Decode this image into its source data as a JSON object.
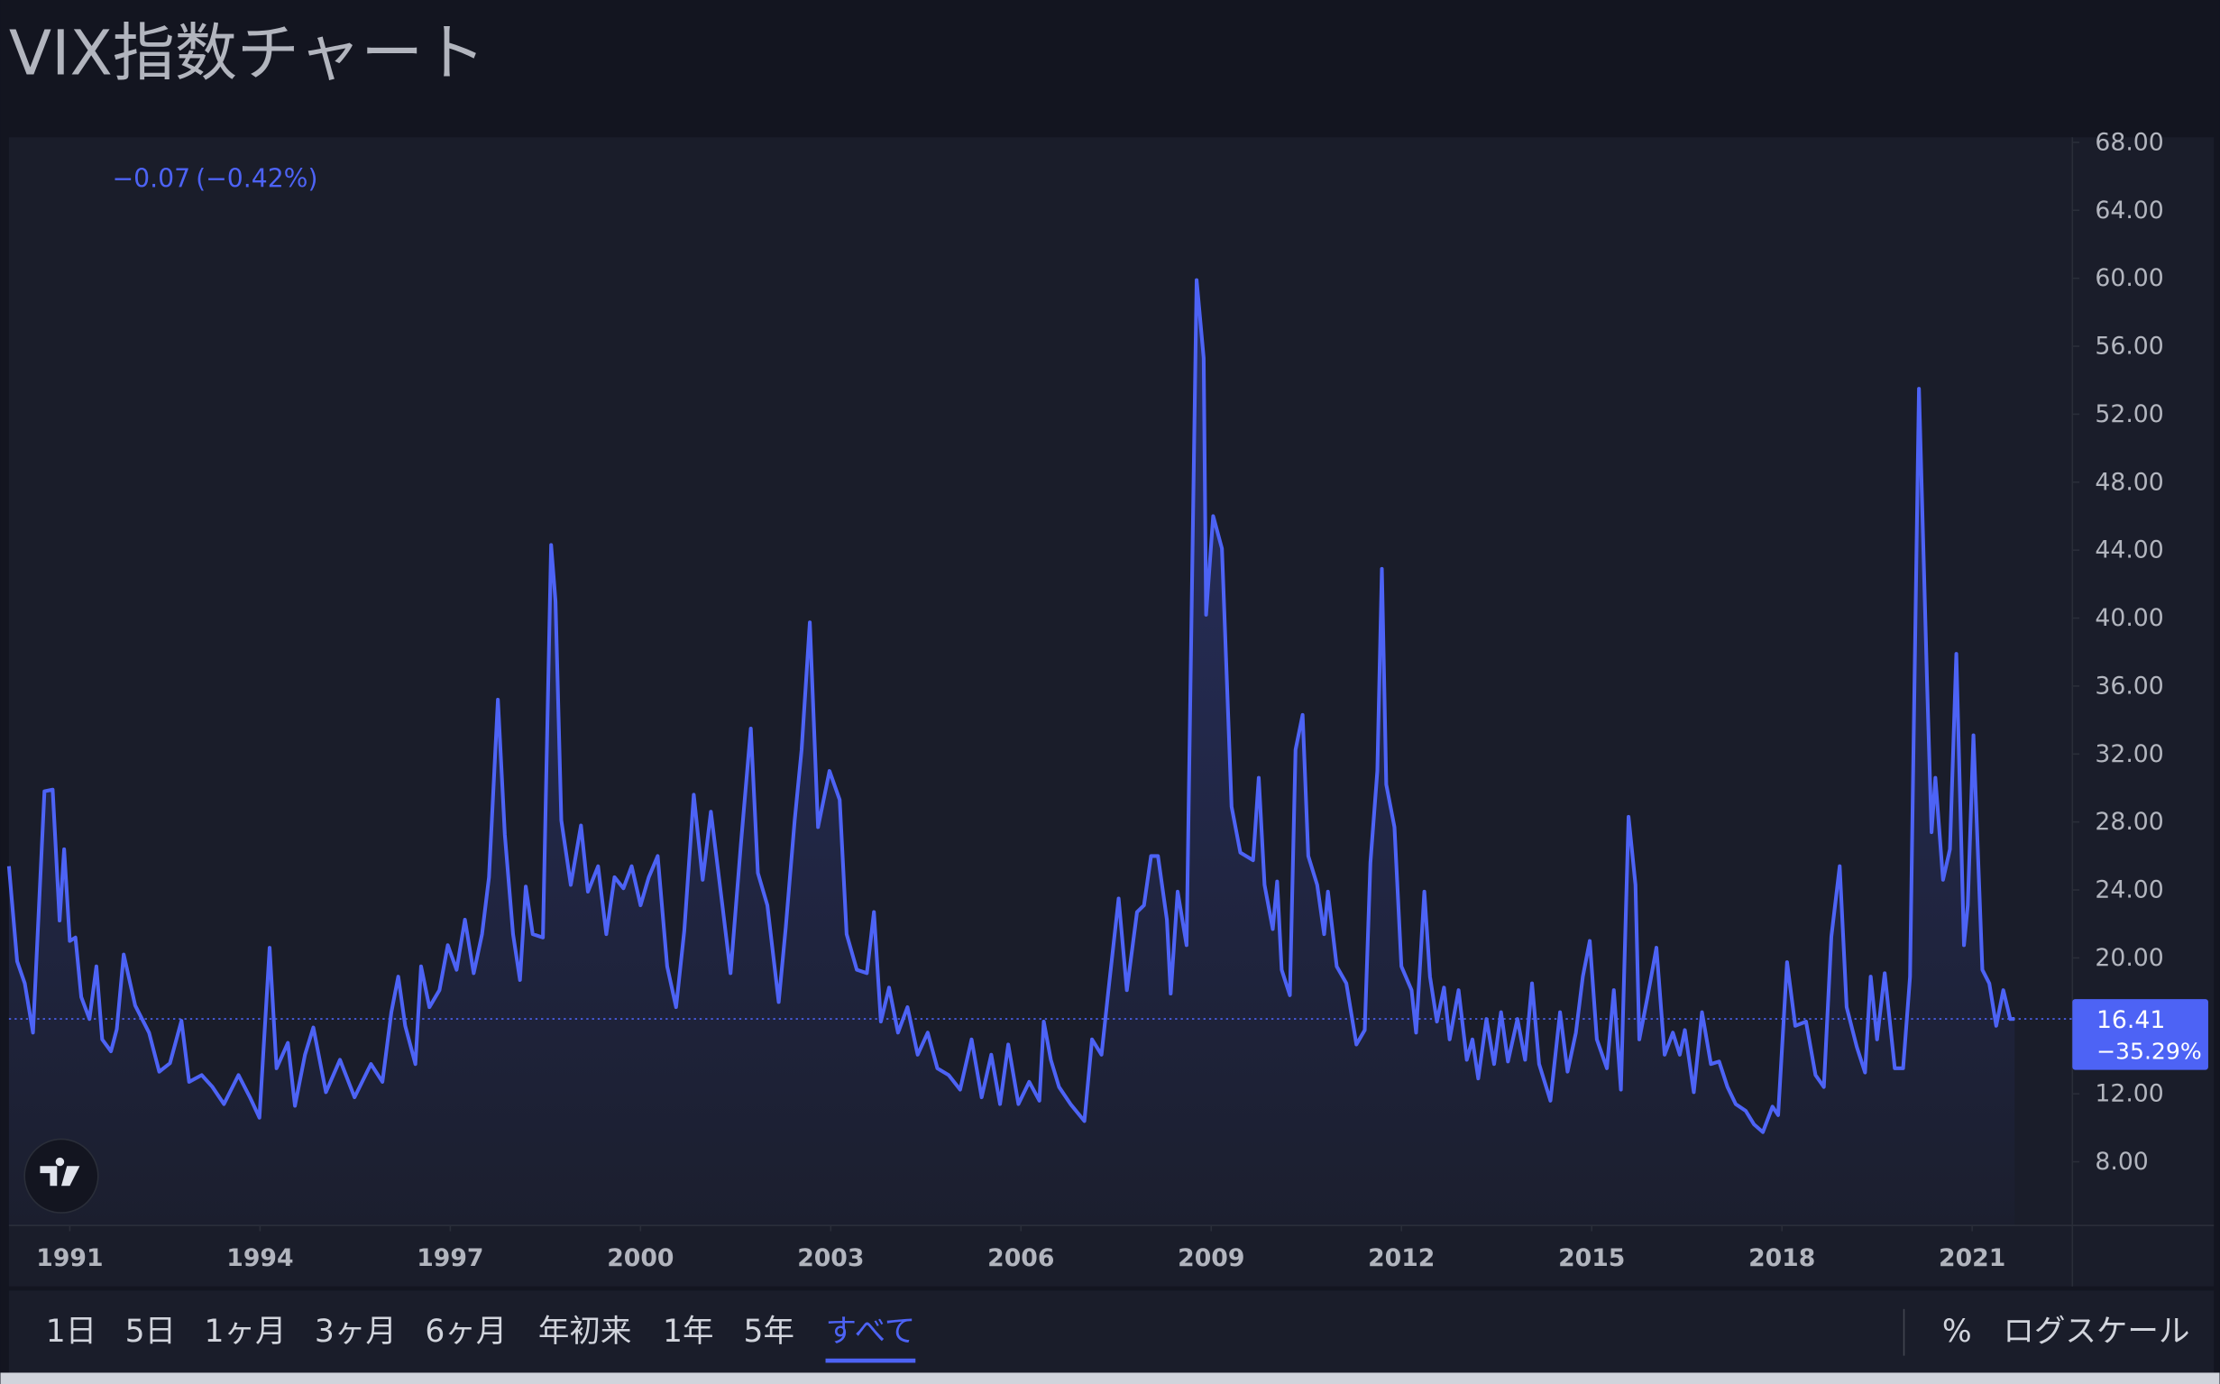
{
  "page": {
    "title": "VIX指数チャート",
    "range_buttons": [
      "1日",
      "5日",
      "1ヶ月",
      "3ヶ月",
      "6ヶ月",
      "年初来",
      "1年",
      "5年",
      "すべて"
    ],
    "active_range": 8,
    "percent_button": "%",
    "log_scale_button": "ログスケール"
  },
  "chart_data": {
    "type": "line",
    "header": {
      "change": "−0.07",
      "change_pct": "(−0.42%)"
    },
    "price_tag_change": "−35.29%",
    "log_scale": false,
    "xlim": [
      1990.04,
      2022.58
    ],
    "xticks": [
      1991,
      1994,
      1997,
      2000,
      2003,
      2006,
      2009,
      2012,
      2015,
      2018,
      2021
    ],
    "ylim": [
      4.25,
      68.3
    ],
    "yticks": [
      {
        "value": 8,
        "label": "8.00"
      },
      {
        "value": 12,
        "label": "12.00"
      },
      {
        "value": 16,
        "label": "16.00"
      },
      {
        "value": 20,
        "label": "20.00"
      },
      {
        "value": 24,
        "label": "24.00"
      },
      {
        "value": 28,
        "label": "28.00"
      },
      {
        "value": 32,
        "label": "32.00"
      },
      {
        "value": 36,
        "label": "36.00"
      },
      {
        "value": 40,
        "label": "40.00"
      },
      {
        "value": 44,
        "label": "44.00"
      },
      {
        "value": 48,
        "label": "48.00"
      },
      {
        "value": 52,
        "label": "52.00"
      },
      {
        "value": 56,
        "label": "56.00"
      },
      {
        "value": 60,
        "label": "60.00"
      },
      {
        "value": 64,
        "label": "64.00"
      },
      {
        "value": 68,
        "label": "68.00"
      }
    ],
    "hidden_yticks": [
      16
    ],
    "x": [
      1990.04,
      1990.17,
      1990.29,
      1990.42,
      1990.6,
      1990.73,
      1990.84,
      1990.91,
      1991.0,
      1991.09,
      1991.18,
      1991.31,
      1991.42,
      1991.51,
      1991.65,
      1991.74,
      1991.85,
      1992.03,
      1992.25,
      1992.41,
      1992.58,
      1992.76,
      1992.88,
      1993.08,
      1993.25,
      1993.43,
      1993.66,
      1993.84,
      1993.99,
      1994.15,
      1994.26,
      1994.44,
      1994.55,
      1994.71,
      1994.84,
      1995.04,
      1995.26,
      1995.49,
      1995.75,
      1995.93,
      1996.07,
      1996.18,
      1996.29,
      1996.45,
      1996.54,
      1996.67,
      1996.83,
      1996.96,
      1997.1,
      1997.23,
      1997.37,
      1997.5,
      1997.61,
      1997.75,
      1997.86,
      1997.99,
      1998.1,
      1998.19,
      1998.3,
      1998.46,
      1998.59,
      1998.66,
      1998.75,
      1998.9,
      1999.06,
      1999.17,
      1999.33,
      1999.46,
      1999.59,
      1999.73,
      1999.86,
      2000.0,
      2000.13,
      2000.27,
      2000.42,
      2000.56,
      2000.69,
      2000.84,
      2000.98,
      2001.11,
      2001.29,
      2001.42,
      2001.58,
      2001.74,
      2001.85,
      2002.0,
      2002.18,
      2002.29,
      2002.43,
      2002.54,
      2002.67,
      2002.8,
      2002.98,
      2003.14,
      2003.25,
      2003.41,
      2003.57,
      2003.68,
      2003.79,
      2003.92,
      2004.06,
      2004.21,
      2004.37,
      2004.53,
      2004.68,
      2004.86,
      2005.04,
      2005.22,
      2005.38,
      2005.53,
      2005.67,
      2005.8,
      2005.96,
      2006.13,
      2006.29,
      2006.36,
      2006.47,
      2006.6,
      2006.78,
      2007.0,
      2007.12,
      2007.27,
      2007.38,
      2007.54,
      2007.67,
      2007.83,
      2007.94,
      2008.05,
      2008.16,
      2008.3,
      2008.36,
      2008.47,
      2008.61,
      2008.77,
      2008.88,
      2008.92,
      2009.03,
      2009.17,
      2009.32,
      2009.46,
      2009.66,
      2009.75,
      2009.84,
      2009.97,
      2010.04,
      2010.11,
      2010.24,
      2010.33,
      2010.44,
      2010.53,
      2010.67,
      2010.78,
      2010.84,
      2010.98,
      2011.13,
      2011.29,
      2011.42,
      2011.51,
      2011.62,
      2011.69,
      2011.76,
      2011.89,
      2012.0,
      2012.16,
      2012.23,
      2012.36,
      2012.45,
      2012.56,
      2012.67,
      2012.76,
      2012.9,
      2013.03,
      2013.12,
      2013.21,
      2013.34,
      2013.46,
      2013.57,
      2013.68,
      2013.83,
      2013.95,
      2014.06,
      2014.17,
      2014.35,
      2014.5,
      2014.62,
      2014.75,
      2014.86,
      2014.97,
      2015.08,
      2015.24,
      2015.35,
      2015.46,
      2015.58,
      2015.69,
      2015.75,
      2015.88,
      2016.02,
      2016.15,
      2016.28,
      2016.39,
      2016.47,
      2016.61,
      2016.74,
      2016.88,
      2017.01,
      2017.14,
      2017.27,
      2017.43,
      2017.56,
      2017.7,
      2017.85,
      2017.94,
      2018.08,
      2018.21,
      2018.38,
      2018.53,
      2018.66,
      2018.78,
      2018.91,
      2019.02,
      2019.18,
      2019.31,
      2019.4,
      2019.5,
      2019.62,
      2019.78,
      2019.91,
      2020.02,
      2020.16,
      2020.29,
      2020.36,
      2020.42,
      2020.54,
      2020.65,
      2020.75,
      2020.87,
      2020.93,
      2021.02,
      2021.16,
      2021.27,
      2021.38,
      2021.49,
      2021.6,
      2021.67
    ],
    "series": [
      {
        "name": "VIX",
        "color": "#4d63f5",
        "values": [
          25.4,
          19.8,
          18.5,
          15.6,
          29.8,
          29.9,
          22.2,
          26.4,
          21,
          21.2,
          17.7,
          16.4,
          19.5,
          15.2,
          14.5,
          15.8,
          20.2,
          17.2,
          15.6,
          13.3,
          13.8,
          16.3,
          12.7,
          13.1,
          12.4,
          11.4,
          13.1,
          11.8,
          10.6,
          20.6,
          13.5,
          15,
          11.3,
          14.3,
          15.9,
          12.1,
          14,
          11.8,
          13.75,
          12.7,
          16.8,
          18.9,
          16,
          13.75,
          19.5,
          17.1,
          18.1,
          20.75,
          19.3,
          22.25,
          19.1,
          21.4,
          24.75,
          35.2,
          27.25,
          21.4,
          18.7,
          24.2,
          21.4,
          21.2,
          44.3,
          41,
          28.1,
          24.3,
          27.8,
          23.9,
          25.4,
          21.4,
          24.75,
          24.1,
          25.4,
          23.1,
          24.75,
          26,
          19.5,
          17.1,
          21.6,
          29.6,
          24.6,
          28.6,
          23.1,
          19.1,
          26.6,
          33.5,
          25,
          23.1,
          17.4,
          21.8,
          28.1,
          32.25,
          39.75,
          27.7,
          31,
          29.3,
          21.4,
          19.3,
          19.1,
          22.7,
          16.25,
          18.25,
          15.6,
          17.1,
          14.3,
          15.6,
          13.5,
          13.1,
          12.25,
          15.2,
          11.8,
          14.3,
          11.4,
          14.9,
          11.4,
          12.7,
          11.6,
          16.25,
          14,
          12.4,
          11.4,
          10.4,
          15.2,
          14.3,
          18.1,
          23.5,
          18.1,
          22.7,
          23.1,
          26,
          26,
          22.25,
          17.9,
          23.9,
          20.75,
          59.9,
          55.3,
          40.2,
          46,
          44.1,
          28.9,
          26.2,
          25.75,
          30.6,
          24.3,
          21.7,
          24.5,
          19.3,
          17.8,
          32.25,
          34.3,
          26,
          24.3,
          21.4,
          23.9,
          19.5,
          18.5,
          14.9,
          15.75,
          25.6,
          31,
          42.9,
          30.2,
          27.7,
          19.5,
          18.1,
          15.6,
          23.9,
          18.9,
          16.25,
          18.25,
          15.2,
          18.1,
          14,
          15.2,
          12.9,
          16.4,
          13.75,
          16.8,
          13.9,
          16.4,
          14,
          18.5,
          13.75,
          11.6,
          16.8,
          13.3,
          15.6,
          18.9,
          21,
          15.2,
          13.5,
          18.1,
          12.25,
          28.3,
          24.3,
          15.2,
          17.7,
          20.6,
          14.3,
          15.6,
          14.3,
          15.75,
          12.1,
          16.8,
          13.75,
          13.9,
          12.4,
          11.4,
          11,
          10.2,
          9.75,
          11.25,
          10.75,
          19.75,
          16,
          16.25,
          13.1,
          12.4,
          21.25,
          25.4,
          17.1,
          14.75,
          13.25,
          18.9,
          15.2,
          19.1,
          13.5,
          13.5,
          18.9,
          53.5,
          36,
          27.4,
          30.6,
          24.6,
          26.4,
          37.9,
          20.75,
          23.1,
          33.1,
          19.3,
          18.5,
          16,
          18.1,
          16.4,
          16.41
        ]
      }
    ]
  }
}
